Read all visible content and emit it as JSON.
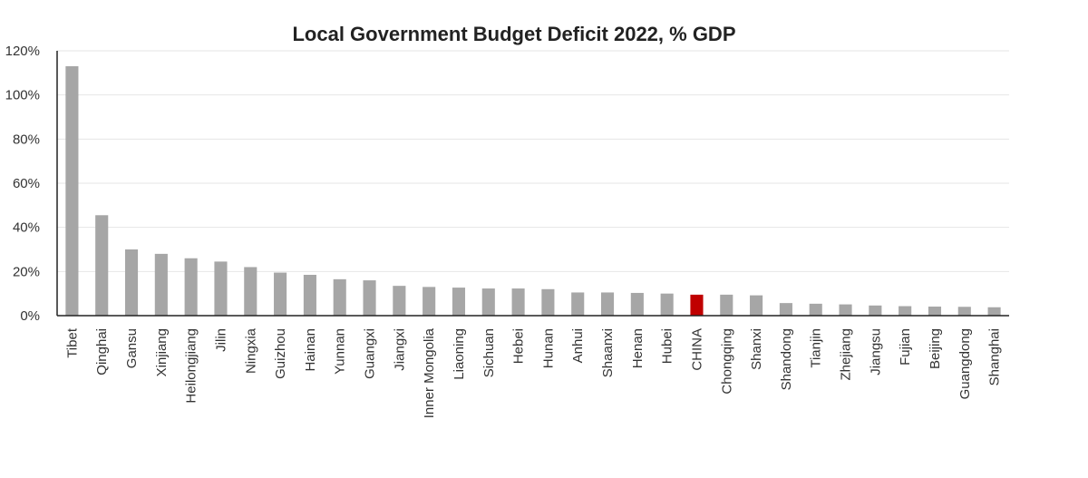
{
  "chart_data": {
    "type": "bar",
    "title": "Local Government Budget Deficit 2022, % GDP",
    "xlabel": "",
    "ylabel": "",
    "ylim": [
      0,
      120
    ],
    "yticks": [
      "0%",
      "20%",
      "40%",
      "60%",
      "80%",
      "100%",
      "120%"
    ],
    "grid": true,
    "categories": [
      "Tibet",
      "Qinghai",
      "Gansu",
      "Xinjiang",
      "Heilongjiang",
      "Jilin",
      "Ningxia",
      "Guizhou",
      "Hainan",
      "Yunnan",
      "Guangxi",
      "Jiangxi",
      "Inner Mongolia",
      "Liaoning",
      "Sichuan",
      "Hebei",
      "Hunan",
      "Anhui",
      "Shaanxi",
      "Henan",
      "Hubei",
      "CHINA",
      "Chongqing",
      "Shanxi",
      "Shandong",
      "Tianjin",
      "Zhejiang",
      "Jiangsu",
      "Fujian",
      "Beijing",
      "Guangdong",
      "Shanghai"
    ],
    "values": [
      113,
      45.5,
      30,
      28,
      26,
      24.5,
      22,
      19.5,
      18.5,
      16.5,
      16,
      13.5,
      13,
      12.7,
      12.3,
      12.3,
      12,
      10.5,
      10.5,
      10.3,
      10,
      9.5,
      9.5,
      9.2,
      5.7,
      5.4,
      5.1,
      4.6,
      4.3,
      4.1,
      4,
      3.8
    ],
    "colors": {
      "default": "#a6a6a6",
      "highlight": "#c00000"
    },
    "highlight_category": "CHINA"
  }
}
